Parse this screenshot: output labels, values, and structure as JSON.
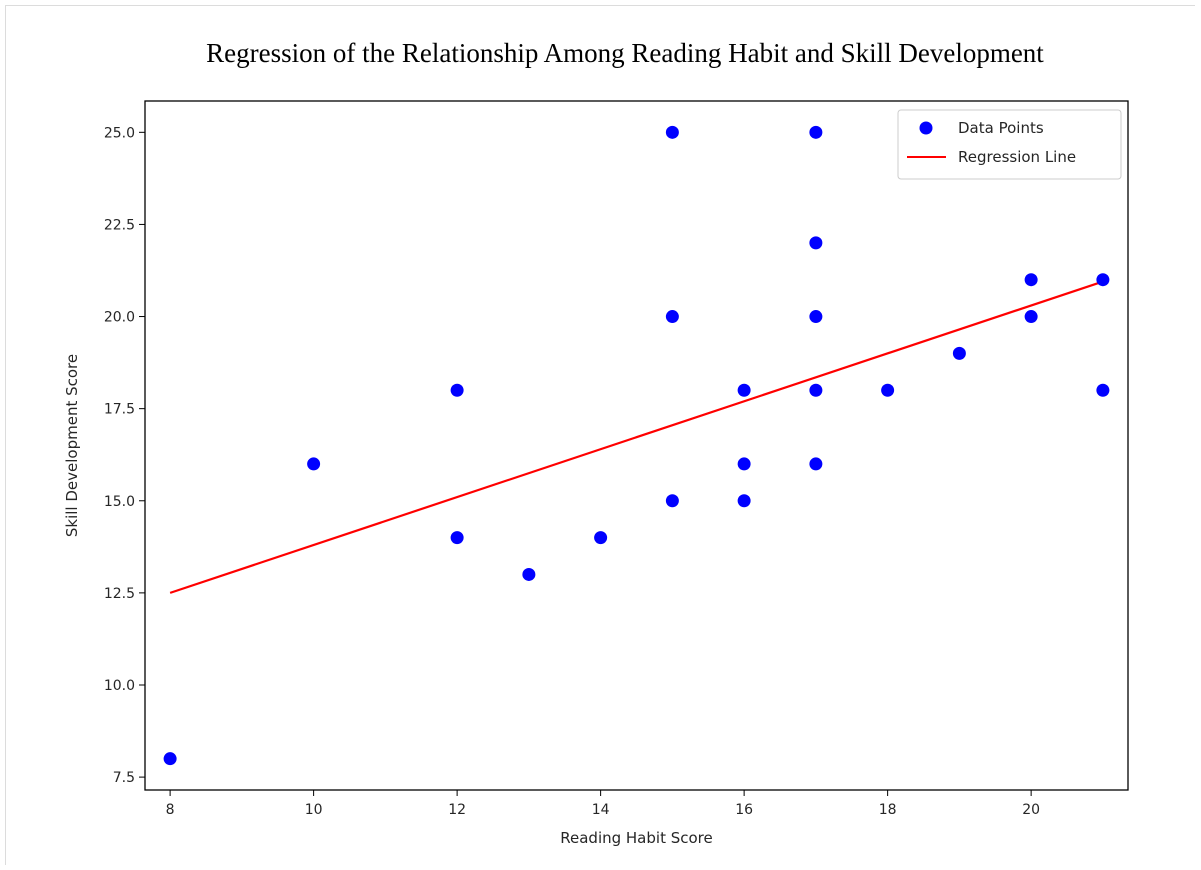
{
  "chart_data": {
    "type": "scatter",
    "title": "Regression of the Relationship Among Reading Habit and Skill Development",
    "xlabel": "Reading Habit Score",
    "ylabel": "Skill Development Score",
    "xlim": [
      7.65,
      21.35
    ],
    "ylim": [
      7.15,
      25.85
    ],
    "x_ticks": [
      8,
      10,
      12,
      14,
      16,
      18,
      20
    ],
    "x_tick_labels": [
      "8",
      "10",
      "12",
      "14",
      "16",
      "18",
      "20"
    ],
    "y_ticks": [
      7.5,
      10.0,
      12.5,
      15.0,
      17.5,
      20.0,
      22.5,
      25.0
    ],
    "y_tick_labels": [
      "7.5",
      "10.0",
      "12.5",
      "15.0",
      "17.5",
      "20.0",
      "22.5",
      "25.0"
    ],
    "grid": false,
    "legend_position": "top-right",
    "series": [
      {
        "name": "Data Points",
        "kind": "scatter",
        "color": "#0000ff",
        "points": [
          {
            "x": 8,
            "y": 8
          },
          {
            "x": 10,
            "y": 16
          },
          {
            "x": 12,
            "y": 18
          },
          {
            "x": 12,
            "y": 14
          },
          {
            "x": 13,
            "y": 13
          },
          {
            "x": 14,
            "y": 14
          },
          {
            "x": 15,
            "y": 25
          },
          {
            "x": 15,
            "y": 20
          },
          {
            "x": 15,
            "y": 15
          },
          {
            "x": 16,
            "y": 18
          },
          {
            "x": 16,
            "y": 16
          },
          {
            "x": 16,
            "y": 15
          },
          {
            "x": 17,
            "y": 25
          },
          {
            "x": 17,
            "y": 22
          },
          {
            "x": 17,
            "y": 20
          },
          {
            "x": 17,
            "y": 18
          },
          {
            "x": 17,
            "y": 16
          },
          {
            "x": 18,
            "y": 18
          },
          {
            "x": 19,
            "y": 19
          },
          {
            "x": 20,
            "y": 21
          },
          {
            "x": 20,
            "y": 20
          },
          {
            "x": 21,
            "y": 21
          },
          {
            "x": 21,
            "y": 18
          }
        ]
      },
      {
        "name": "Regression Line",
        "kind": "line",
        "color": "#ff0000",
        "points": [
          {
            "x": 8,
            "y": 12.5
          },
          {
            "x": 21,
            "y": 20.95
          }
        ]
      }
    ]
  }
}
